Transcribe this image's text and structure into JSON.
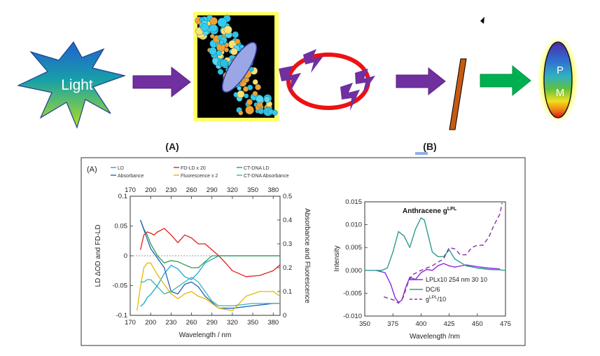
{
  "top": {
    "star_text": "Light",
    "detector_letters": [
      "P",
      "M"
    ],
    "label_a": "(A)",
    "label_b": "(B)"
  },
  "colors": {
    "arrow_purple": "#7030a0",
    "arrow_green": "#00b050",
    "ring_red": "#ee1111",
    "bolt_purple": "#7030a0",
    "polarizer_orange": "#c55a11",
    "glow_yellow": "#ffff66"
  },
  "panel_left": {
    "label": "(A)",
    "legend": [
      "LD",
      "FD-LD x 20",
      "CT-DNA LD",
      "Absorbance",
      "Fluorescence x 2",
      "CT-DNA Absorbance"
    ],
    "legend_colors": [
      "#1ea7d6",
      "#e02020",
      "#2a9d4a",
      "#1f5fbf",
      "#e6b800",
      "#39b4b0"
    ],
    "top_ticks": [
      "170",
      "200",
      "230",
      "260",
      "290",
      "320",
      "350",
      "380"
    ],
    "bottom_ticks": [
      "170",
      "200",
      "230",
      "260",
      "290",
      "320",
      "350",
      "380"
    ],
    "left_ticks": [
      "0.1",
      "0.05",
      "0",
      "-0.05",
      "-0.1"
    ],
    "right_ticks": [
      "0.5",
      "0.4",
      "0.3",
      "0.2",
      "0.1",
      "0"
    ],
    "ylabel_left": "LD ΔOD and FD-LD",
    "ylabel_right": "Absorbance and Fluorescence",
    "xlabel": "Wavelength / nm"
  },
  "panel_right": {
    "title_main": "Anthracene g",
    "title_sup": "LPL",
    "y_ticks": [
      "0.015",
      "0.010",
      "0.005",
      "0.000",
      "-0.005",
      "-0.010"
    ],
    "x_ticks": [
      "350",
      "375",
      "400",
      "425",
      "450",
      "475"
    ],
    "ylabel": "Intensity",
    "xlabel": "Wavelength /nm",
    "legend": [
      "LPLx10 254 nm 30 10",
      "DC/6",
      "g"
    ],
    "legend_sup": "LPL",
    "legend_suffix": "/10"
  },
  "chart_data": [
    {
      "type": "line",
      "xlim": [
        170,
        390
      ],
      "ylim_left": [
        -0.1,
        0.1
      ],
      "ylim_right": [
        0,
        0.5
      ],
      "series": [
        {
          "name": "LD",
          "axis": "left",
          "x": [
            185,
            190,
            195,
            200,
            210,
            220,
            230,
            240,
            250,
            260,
            270,
            280,
            300,
            320,
            350,
            380,
            390
          ],
          "y": [
            -0.085,
            -0.08,
            -0.07,
            -0.065,
            -0.05,
            -0.03,
            -0.016,
            -0.022,
            -0.035,
            -0.04,
            -0.028,
            -0.012,
            0.0,
            0.0,
            0.0,
            0.0,
            0.0
          ]
        },
        {
          "name": "FD-LD x 20",
          "axis": "left",
          "x": [
            185,
            190,
            195,
            200,
            205,
            210,
            220,
            230,
            240,
            250,
            260,
            270,
            280,
            290,
            300,
            310,
            320,
            340,
            360,
            380,
            390
          ],
          "y": [
            0.01,
            0.035,
            0.04,
            0.038,
            0.035,
            0.04,
            0.046,
            0.035,
            0.022,
            0.035,
            0.03,
            0.02,
            0.02,
            0.01,
            0.0,
            -0.012,
            -0.025,
            -0.035,
            -0.033,
            -0.025,
            -0.015
          ]
        },
        {
          "name": "CT-DNA LD",
          "axis": "left",
          "x": [
            185,
            190,
            195,
            200,
            210,
            220,
            230,
            240,
            250,
            260,
            270,
            280,
            290,
            300,
            320,
            340,
            360,
            390
          ],
          "y": [
            0.06,
            0.045,
            0.035,
            0.02,
            0.0,
            -0.012,
            -0.008,
            -0.01,
            -0.015,
            -0.02,
            -0.02,
            -0.01,
            0.0,
            0.0,
            0.0,
            0.0,
            0.0,
            0.0
          ]
        },
        {
          "name": "Absorbance",
          "axis": "right",
          "x": [
            185,
            190,
            195,
            200,
            210,
            220,
            230,
            240,
            250,
            260,
            270,
            280,
            300,
            320,
            350,
            380,
            390
          ],
          "y": [
            0.4,
            0.36,
            0.32,
            0.28,
            0.24,
            0.2,
            0.1,
            0.09,
            0.13,
            0.14,
            0.12,
            0.08,
            0.03,
            0.03,
            0.04,
            0.05,
            0.05
          ]
        },
        {
          "name": "Fluorescence x 2",
          "axis": "right",
          "x": [
            180,
            185,
            190,
            195,
            200,
            210,
            220,
            230,
            240,
            250,
            260,
            270,
            280,
            290,
            300,
            320,
            340,
            360,
            380,
            390
          ],
          "y": [
            0.02,
            0.12,
            0.2,
            0.22,
            0.22,
            0.17,
            0.13,
            0.09,
            0.07,
            0.09,
            0.1,
            0.08,
            0.07,
            0.05,
            0.03,
            0.02,
            0.08,
            0.1,
            0.1,
            0.08
          ]
        },
        {
          "name": "CT-DNA Absorbance",
          "axis": "right",
          "x": [
            185,
            190,
            195,
            200,
            210,
            220,
            230,
            240,
            250,
            260,
            270,
            280,
            290,
            300,
            320,
            350,
            390
          ],
          "y": [
            0.14,
            0.14,
            0.15,
            0.15,
            0.12,
            0.09,
            0.1,
            0.12,
            0.14,
            0.16,
            0.14,
            0.1,
            0.06,
            0.04,
            0.04,
            0.05,
            0.05
          ]
        }
      ]
    },
    {
      "type": "line",
      "xlim": [
        350,
        475
      ],
      "ylim": [
        -0.01,
        0.015
      ],
      "series": [
        {
          "name": "LPLx10 254 nm 30 10",
          "x": [
            360,
            368,
            373,
            377,
            380,
            383,
            386,
            390,
            395,
            400,
            405,
            410,
            415,
            420,
            425,
            430,
            440,
            450,
            460,
            470
          ],
          "y": [
            0.0,
            -0.0005,
            -0.003,
            -0.006,
            -0.007,
            -0.0065,
            -0.004,
            -0.0015,
            -0.002,
            -0.0005,
            0.0002,
            0.0,
            0.001,
            0.0015,
            0.001,
            0.0007,
            0.0012,
            0.0008,
            0.0005,
            0.0003
          ]
        },
        {
          "name": "DC/6",
          "x": [
            350,
            365,
            370,
            375,
            380,
            385,
            390,
            395,
            400,
            403,
            406,
            410,
            415,
            420,
            425,
            430,
            440,
            450,
            460,
            470,
            475
          ],
          "y": [
            0.0,
            0.0,
            0.0005,
            0.004,
            0.0085,
            0.0075,
            0.005,
            0.009,
            0.0115,
            0.011,
            0.008,
            0.004,
            0.003,
            0.003,
            0.0045,
            0.0025,
            0.001,
            0.0005,
            0.0002,
            0.0001,
            0.0
          ]
        },
        {
          "name": "g/10",
          "x": [
            367,
            372,
            376,
            380,
            384,
            388,
            392,
            396,
            400,
            405,
            410,
            415,
            420,
            425,
            430,
            435,
            440,
            445,
            450,
            455,
            460,
            465,
            470,
            472
          ],
          "y": [
            -0.0058,
            -0.0062,
            -0.0065,
            -0.0072,
            -0.006,
            -0.003,
            -0.001,
            -0.0005,
            0.0,
            0.0005,
            0.001,
            0.0018,
            0.0025,
            0.005,
            0.0047,
            0.0034,
            0.0034,
            0.005,
            0.0055,
            0.0055,
            0.0072,
            0.01,
            0.0123,
            0.0148
          ]
        }
      ]
    }
  ]
}
